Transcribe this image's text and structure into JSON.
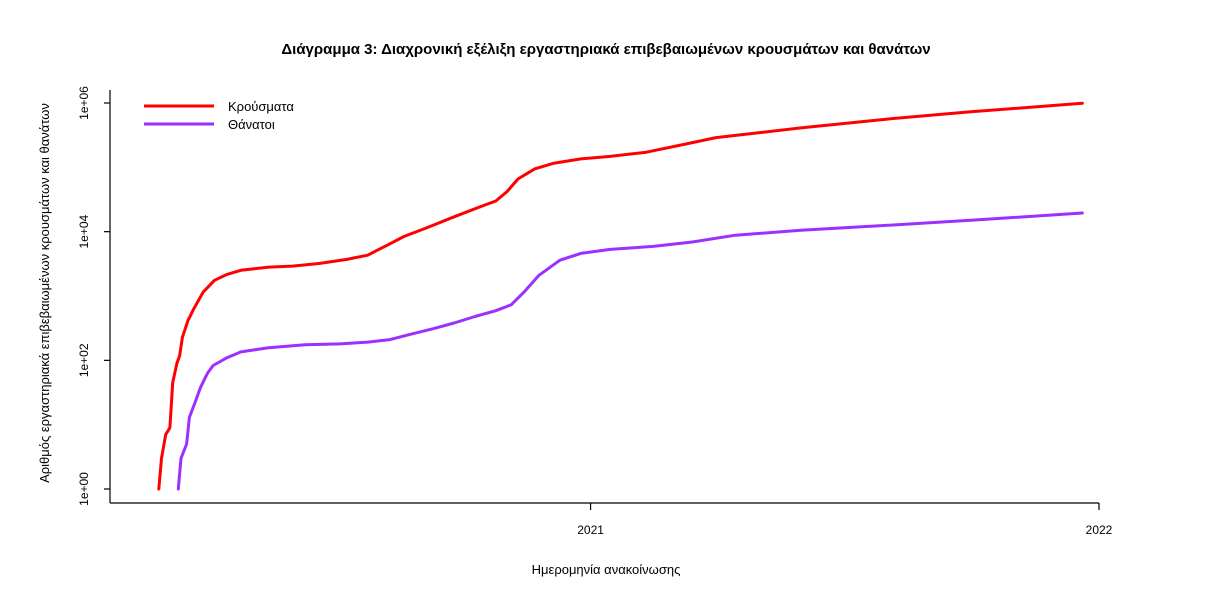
{
  "chart_data": {
    "type": "line",
    "title": "Διάγραμμα 3: Διαχρονική εξέλιξη εργαστηριακά επιβεβαιωμένων κρουσμάτων και θανάτων",
    "xlabel": "Ημερομηνία ανακοίνωσης",
    "ylabel": "Αριθμός εργαστηριακά επιβεβαιωμένων κρουσμάτων και θανάτων",
    "y_scale": "log10",
    "ylim": [
      1,
      1000000
    ],
    "y_ticks": [
      {
        "value": 1,
        "label": "1e+00"
      },
      {
        "value": 100,
        "label": "1e+02"
      },
      {
        "value": 10000,
        "label": "1e+04"
      },
      {
        "value": 1000000,
        "label": "1e+06"
      }
    ],
    "x_ticks": [
      {
        "value": "2021-01-01",
        "label": "2021"
      },
      {
        "value": "2022-01-01",
        "label": "2022"
      }
    ],
    "xlim": [
      "2020-01-22",
      "2022-01-01"
    ],
    "legend_position": "top-left",
    "grid": false,
    "series": [
      {
        "name": "Κρούσματα",
        "color": "#ff0000",
        "points": [
          [
            "2020-02-26",
            1
          ],
          [
            "2020-02-28",
            3
          ],
          [
            "2020-03-02",
            7
          ],
          [
            "2020-03-05",
            9
          ],
          [
            "2020-03-07",
            45
          ],
          [
            "2020-03-10",
            90
          ],
          [
            "2020-03-12",
            117
          ],
          [
            "2020-03-14",
            228
          ],
          [
            "2020-03-18",
            418
          ],
          [
            "2020-03-22",
            624
          ],
          [
            "2020-03-29",
            1156
          ],
          [
            "2020-04-06",
            1755
          ],
          [
            "2020-04-15",
            2170
          ],
          [
            "2020-04-25",
            2506
          ],
          [
            "2020-05-15",
            2810
          ],
          [
            "2020-06-01",
            2917
          ],
          [
            "2020-06-20",
            3203
          ],
          [
            "2020-07-10",
            3700
          ],
          [
            "2020-07-25",
            4300
          ],
          [
            "2020-08-07",
            6000
          ],
          [
            "2020-08-20",
            8400
          ],
          [
            "2020-09-05",
            11400
          ],
          [
            "2020-09-25",
            17000
          ],
          [
            "2020-10-15",
            25000
          ],
          [
            "2020-10-25",
            30000
          ],
          [
            "2020-11-02",
            42000
          ],
          [
            "2020-11-10",
            66000
          ],
          [
            "2020-11-22",
            95000
          ],
          [
            "2020-12-05",
            115000
          ],
          [
            "2020-12-25",
            135000
          ],
          [
            "2021-01-15",
            148000
          ],
          [
            "2021-02-10",
            172000
          ],
          [
            "2021-03-10",
            230000
          ],
          [
            "2021-04-01",
            290000
          ],
          [
            "2021-06-01",
            410000
          ],
          [
            "2021-08-01",
            560000
          ],
          [
            "2021-10-01",
            730000
          ],
          [
            "2021-12-20",
            990000
          ]
        ]
      },
      {
        "name": "Θάνατοι",
        "color": "#9b30ff",
        "points": [
          [
            "2020-03-11",
            1
          ],
          [
            "2020-03-13",
            3
          ],
          [
            "2020-03-17",
            5
          ],
          [
            "2020-03-19",
            13
          ],
          [
            "2020-03-23",
            22
          ],
          [
            "2020-03-27",
            38
          ],
          [
            "2020-04-01",
            63
          ],
          [
            "2020-04-05",
            83
          ],
          [
            "2020-04-15",
            110
          ],
          [
            "2020-04-25",
            135
          ],
          [
            "2020-05-15",
            157
          ],
          [
            "2020-06-10",
            175
          ],
          [
            "2020-07-05",
            180
          ],
          [
            "2020-07-25",
            192
          ],
          [
            "2020-08-10",
            210
          ],
          [
            "2020-08-25",
            255
          ],
          [
            "2020-09-10",
            310
          ],
          [
            "2020-09-25",
            380
          ],
          [
            "2020-10-10",
            480
          ],
          [
            "2020-10-25",
            590
          ],
          [
            "2020-11-05",
            730
          ],
          [
            "2020-11-15",
            1200
          ],
          [
            "2020-11-25",
            2100
          ],
          [
            "2020-12-10",
            3600
          ],
          [
            "2020-12-25",
            4600
          ],
          [
            "2021-01-15",
            5300
          ],
          [
            "2021-02-15",
            5900
          ],
          [
            "2021-03-15",
            6900
          ],
          [
            "2021-04-15",
            8800
          ],
          [
            "2021-06-01",
            10500
          ],
          [
            "2021-08-01",
            12500
          ],
          [
            "2021-10-01",
            15000
          ],
          [
            "2021-12-20",
            19500
          ]
        ]
      }
    ]
  }
}
